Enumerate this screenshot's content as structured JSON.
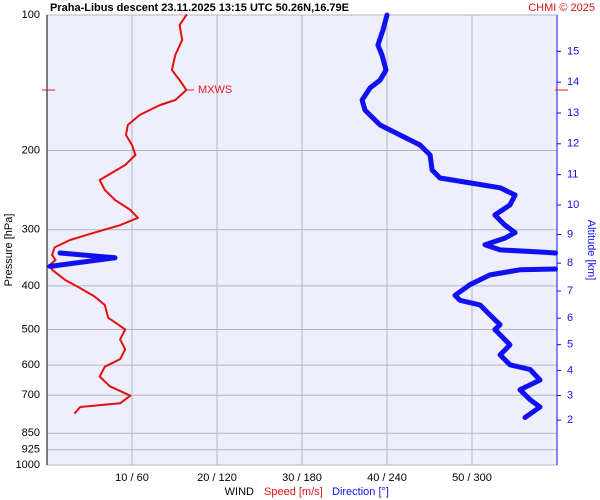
{
  "chart_data": {
    "type": "line",
    "title": "Praha-Libus   descent   23.11.2025 13:15 UTC   50.26N,16.79E",
    "credit": "CHMI © 2025",
    "y_label": "Pressure [hPa]",
    "y2_label": "Altitude [km]",
    "x_label": "WIND",
    "ylim": [
      1000,
      100
    ],
    "log_y": true,
    "yticks": [
      100,
      200,
      300,
      400,
      500,
      600,
      700,
      850,
      925,
      1000
    ],
    "xlim": [
      0,
      60
    ],
    "x2lim": [
      0,
      360
    ],
    "xticks": [
      {
        "value": 10,
        "label": "10 / 60"
      },
      {
        "value": 20,
        "label": "20 / 120"
      },
      {
        "value": 30,
        "label": "30 / 180"
      },
      {
        "value": 40,
        "label": "40 / 240"
      },
      {
        "value": 50,
        "label": "50 / 300"
      }
    ],
    "y2ticks": [
      2,
      3,
      4,
      5,
      6,
      7,
      8,
      9,
      10,
      11,
      12,
      13,
      14,
      15
    ],
    "grid": true,
    "annotation": {
      "text": "MXWS",
      "pressure": 146.8,
      "color": "#e02020"
    },
    "series": [
      {
        "name": "Speed [m/s]",
        "color": "#e01010",
        "width": 2,
        "pressure": [
          100,
          105.3,
          113.6,
          122.7,
          132.5,
          139.5,
          146.8,
          154.5,
          158.5,
          166.8,
          175.6,
          184.8,
          194.5,
          204.7,
          215.4,
          226.7,
          232.6,
          244.8,
          257.6,
          271.1,
          282.3,
          293.1,
          304.4,
          316.2,
          328.5,
          341.3,
          350.3,
          358.2,
          368.4,
          387.5,
          404.5,
          422.2,
          440.9,
          470.8,
          487.9,
          500.0,
          525.9,
          553.2,
          582.0,
          604.7,
          636.1,
          668.5,
          701.5,
          729.2,
          743.2,
          766.3
        ],
        "values": [
          16.4,
          15.6,
          15.9,
          15.1,
          14.7,
          15.6,
          16.4,
          15.1,
          13.3,
          10.9,
          9.5,
          9.3,
          10.0,
          10.4,
          9.2,
          7.2,
          6.2,
          6.8,
          8.0,
          9.8,
          10.7,
          8.6,
          5.6,
          2.7,
          0.9,
          0.6,
          1.0,
          0.4,
          0.6,
          2.1,
          3.9,
          5.6,
          6.8,
          7.2,
          8.4,
          9.2,
          8.6,
          9.2,
          8.6,
          6.8,
          6.2,
          7.4,
          9.8,
          8.6,
          3.9,
          3.3
        ]
      },
      {
        "name": "Direction [°]",
        "color": "#1010f0",
        "width": 5,
        "axis": "x2",
        "pressure": [
          100,
          108,
          116.6,
          122.7,
          132.5,
          139.5,
          145.3,
          154.5,
          162.7,
          175.6,
          184.8,
          194.5,
          204.7,
          221,
          230.3,
          236.1,
          242.1,
          251.2,
          264.3,
          278.3,
          293.1,
          304.4,
          313.1,
          324.1,
          332.7,
          336.2,
          337.9,
          null,
          337.9,
          346.3,
          361.9,
          null,
          366.9,
          368.4,
          378.1,
          397.2,
          419.9,
          430.5,
          440.9,
          464.2,
          487.9,
          500,
          541,
          569.3,
          598.9,
          613.3,
          647.4,
          680.5,
          716.1,
          743.2,
          784.4
        ],
        "values": [
          240,
          237.2,
          233.6,
          236.5,
          239.3,
          235.1,
          228.0,
          222.4,
          224.5,
          235.1,
          249.2,
          263.3,
          270.4,
          271.8,
          277.4,
          298.6,
          319.8,
          330.4,
          326.8,
          316.2,
          323.3,
          330.4,
          323.3,
          309.2,
          319.8,
          348.0,
          359,
          null,
          9.2,
          48.0,
          2.1,
          null,
          359,
          333.9,
          312.7,
          298.6,
          288.0,
          291.5,
          305.7,
          312.7,
          319.8,
          316.2,
          326.8,
          319.8,
          326.8,
          341.0,
          348.0,
          333.9,
          341.0,
          348.0,
          337.4
        ]
      }
    ]
  }
}
